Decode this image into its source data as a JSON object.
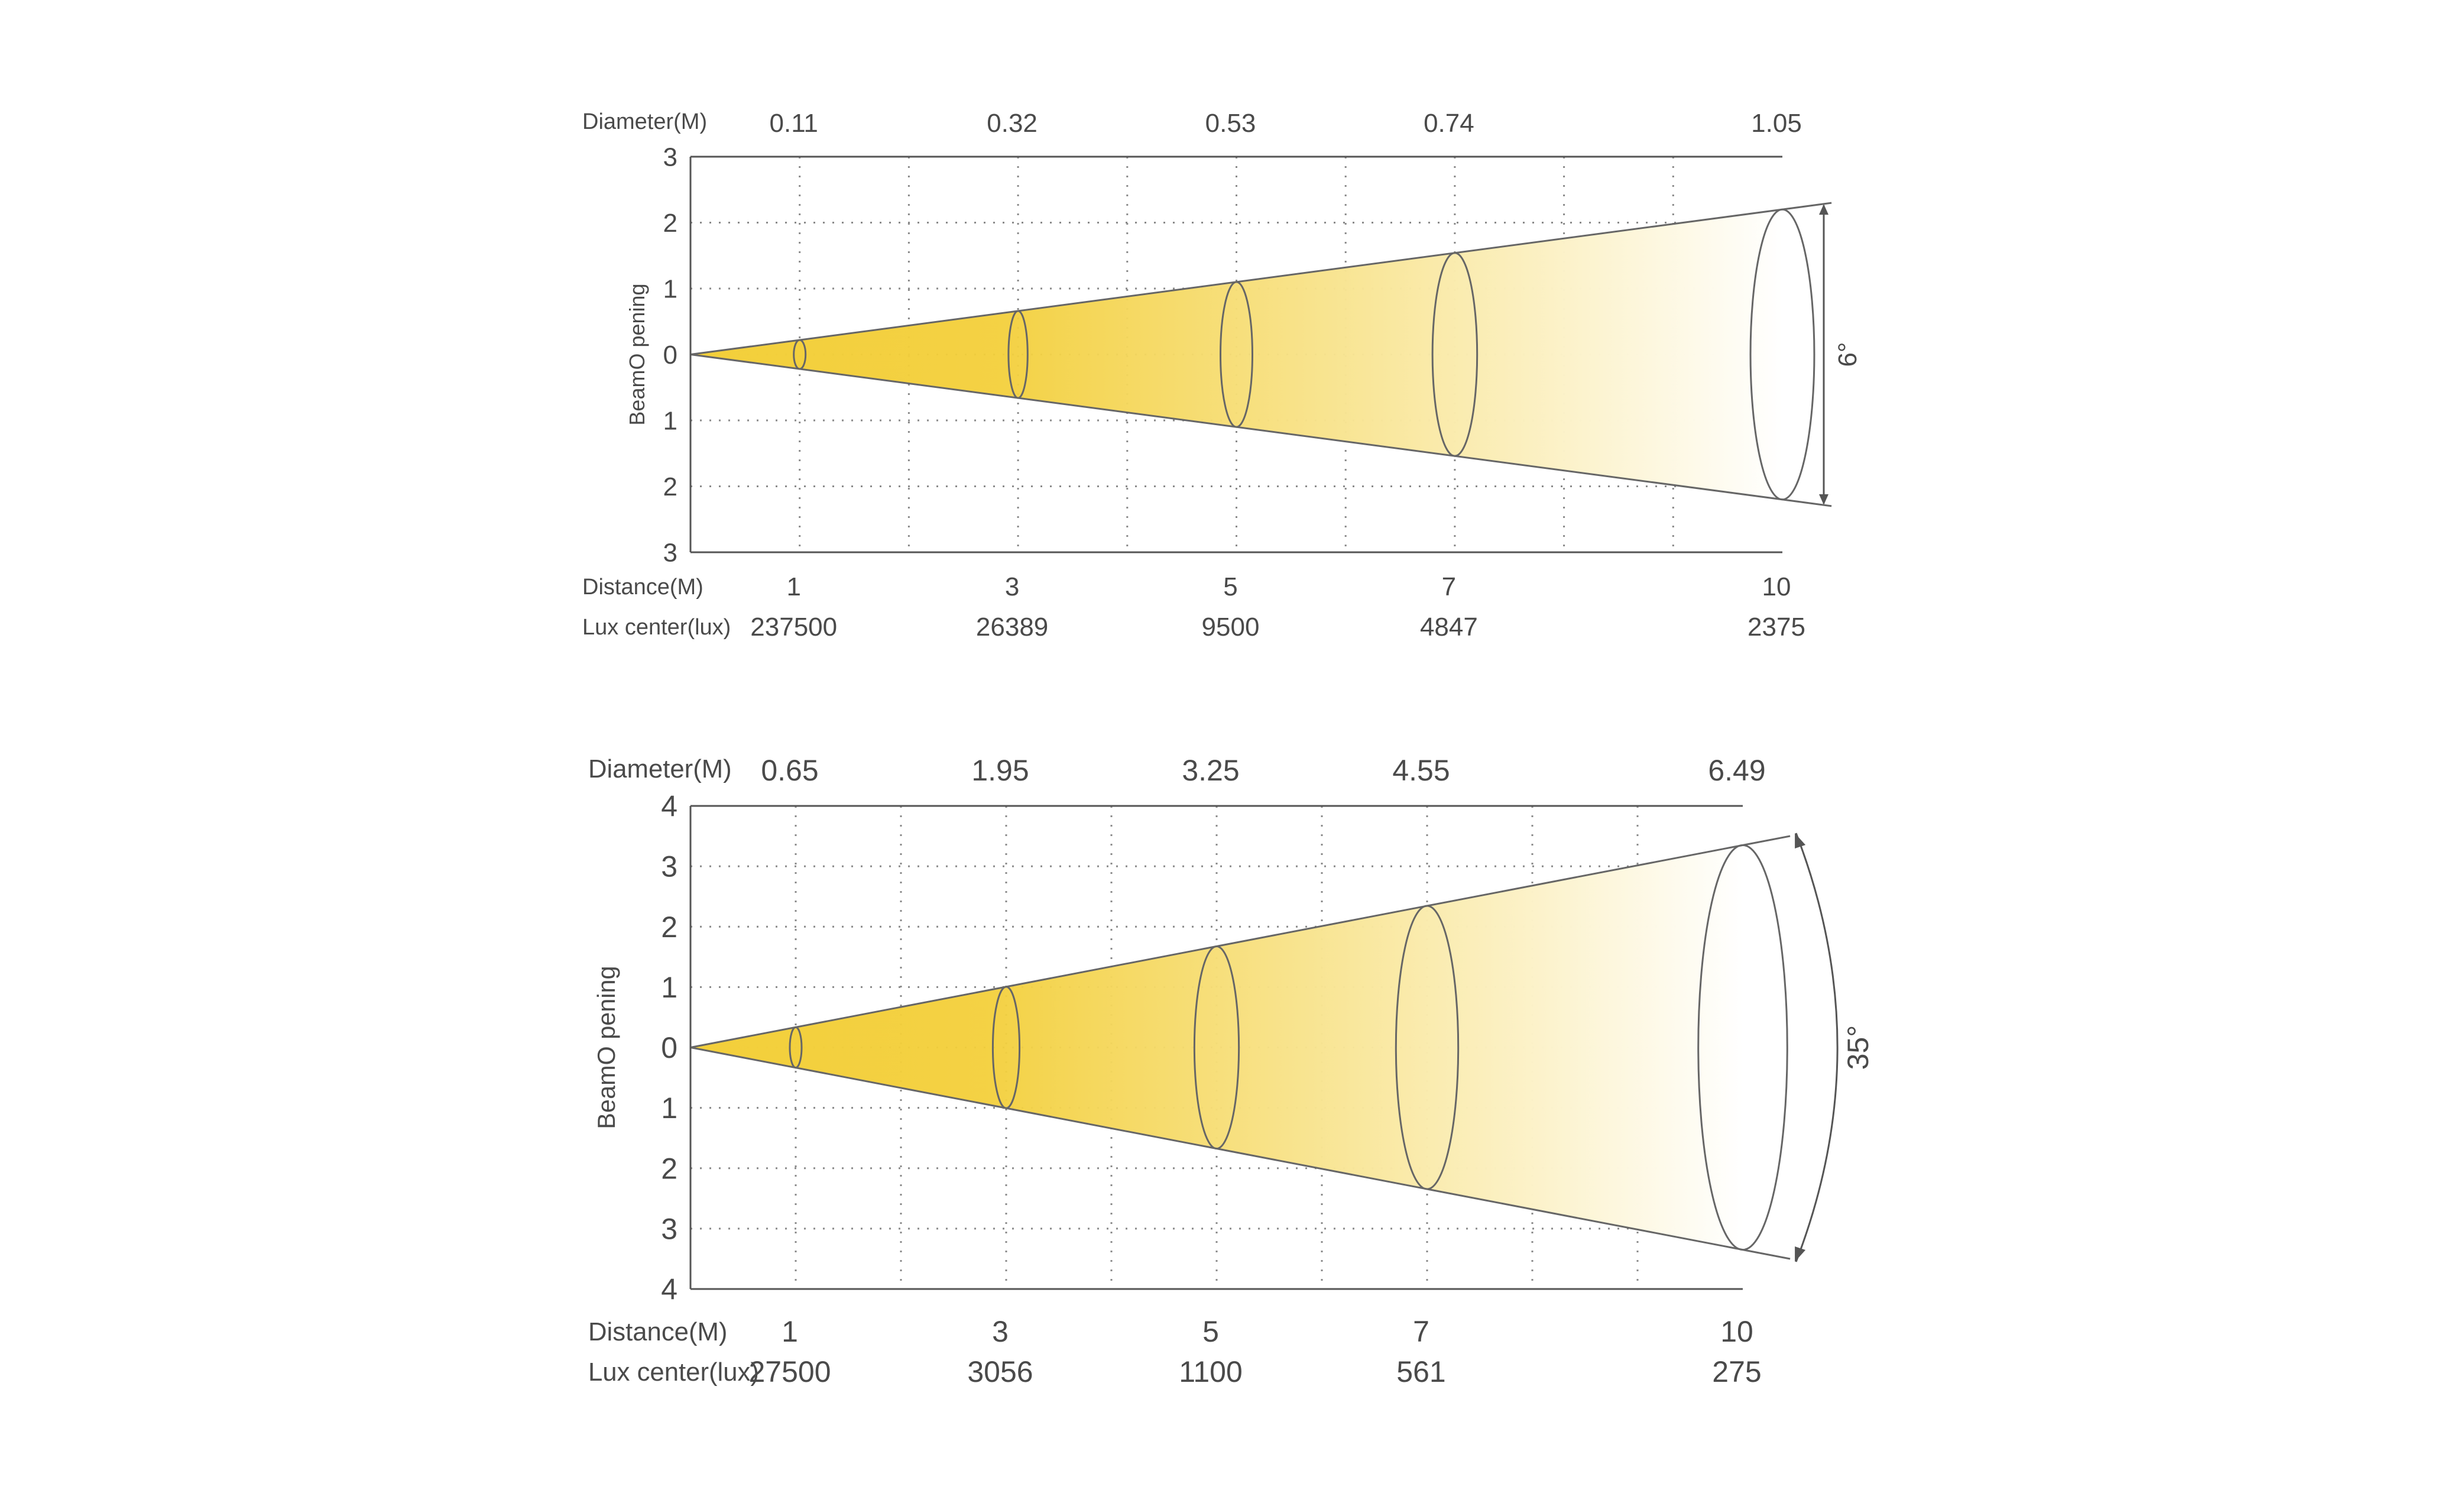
{
  "colors": {
    "beam_start": "#f3cf3a",
    "beam_end": "#ffffff",
    "grid": "#8a8a8a",
    "axis": "#555555",
    "text": "#4a4a4a"
  },
  "chart_data": [
    {
      "type": "beam-diagram",
      "beam_angle_label": "6°",
      "y_axis_label": "BeamO pening",
      "y_ticks": [
        "3",
        "2",
        "1",
        "0",
        "1",
        "2",
        "3"
      ],
      "ylim": [
        -3,
        3
      ],
      "xlim": [
        0,
        10
      ],
      "diameter_label": "Diameter(M)",
      "distance_label": "Distance(M)",
      "lux_label": "Lux center(lux)",
      "distance": [
        1,
        3,
        5,
        7,
        10
      ],
      "distance_text": [
        "1",
        "3",
        "5",
        "7",
        "10"
      ],
      "diameter": [
        0.11,
        0.32,
        0.53,
        0.74,
        1.05
      ],
      "diameter_text": [
        "0.11",
        "0.32",
        "0.53",
        "0.74",
        "1.05"
      ],
      "lux_center": [
        237500,
        26389,
        9500,
        4847,
        2375
      ],
      "lux_text": [
        "237500",
        "26389",
        "9500",
        "4847",
        "2375"
      ],
      "grid": true
    },
    {
      "type": "beam-diagram",
      "beam_angle_label": "35°",
      "y_axis_label": "BeamO pening",
      "y_ticks": [
        "4",
        "3",
        "2",
        "1",
        "0",
        "1",
        "2",
        "3",
        "4"
      ],
      "ylim": [
        -4,
        4
      ],
      "xlim": [
        0,
        10
      ],
      "diameter_label": "Diameter(M)",
      "distance_label": "Distance(M)",
      "lux_label": "Lux center(lux)",
      "distance": [
        1,
        3,
        5,
        7,
        10
      ],
      "distance_text": [
        "1",
        "3",
        "5",
        "7",
        "10"
      ],
      "diameter": [
        0.65,
        1.95,
        3.25,
        4.55,
        6.49
      ],
      "diameter_text": [
        "0.65",
        "1.95",
        "3.25",
        "4.55",
        "6.49"
      ],
      "lux_center": [
        27500,
        3056,
        1100,
        561,
        275
      ],
      "lux_text": [
        "27500",
        "3056",
        "1100",
        "561",
        "275"
      ],
      "grid": true
    }
  ]
}
